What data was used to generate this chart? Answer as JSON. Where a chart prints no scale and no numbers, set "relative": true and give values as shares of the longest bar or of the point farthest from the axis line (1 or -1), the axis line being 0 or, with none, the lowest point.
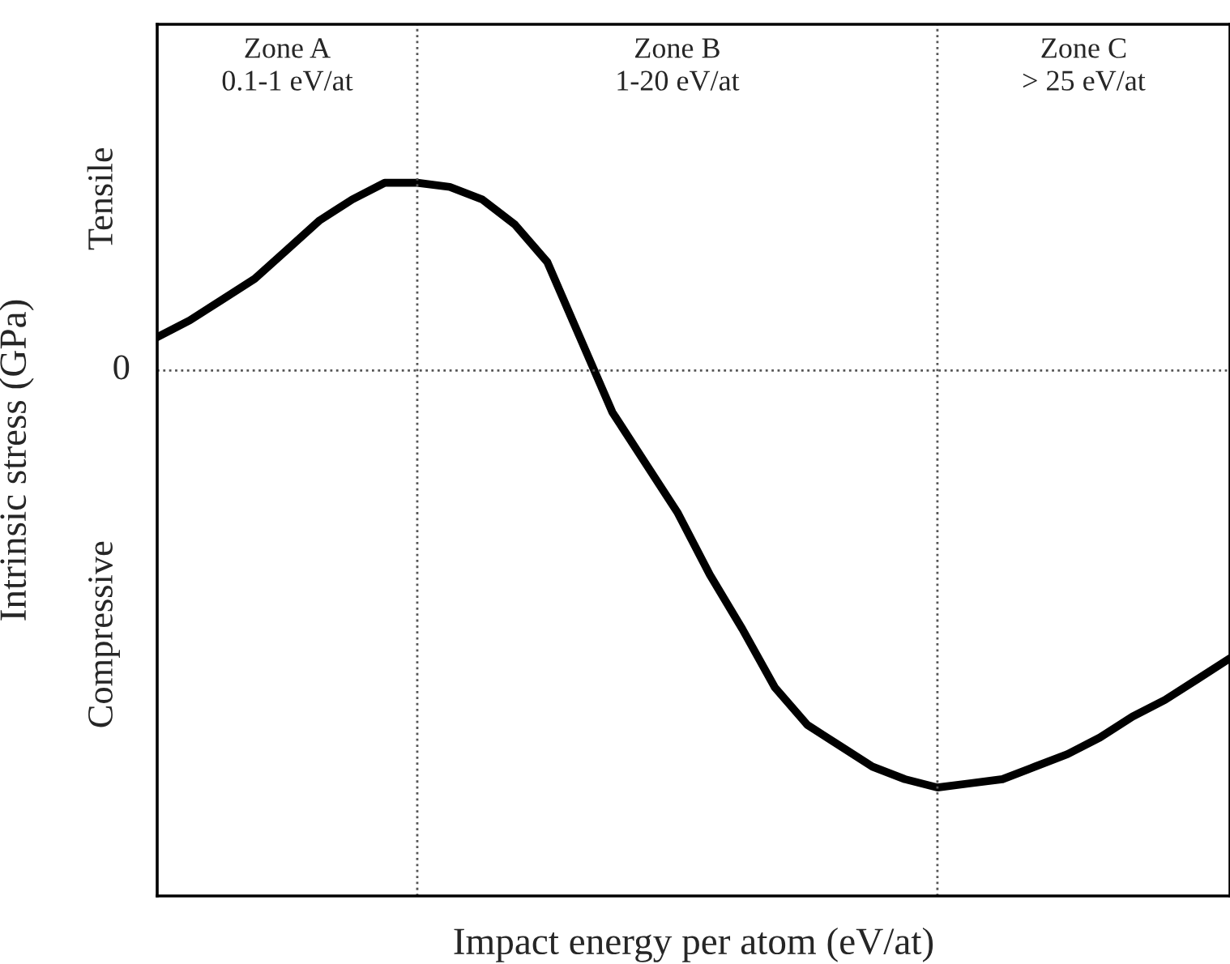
{
  "chart_data": {
    "type": "line",
    "relative": true,
    "xlabel": "Impact energy per atom (eV/at)",
    "ylabel": "Intrinsic stress (GPa)",
    "categories": [
      null,
      null,
      null,
      null,
      null,
      null,
      null,
      null,
      null,
      null,
      null,
      null,
      null,
      null,
      null,
      null,
      null,
      null,
      null,
      null,
      null,
      null,
      null,
      null,
      null,
      null,
      null,
      null,
      null,
      null,
      null,
      null,
      null,
      null
    ],
    "series": [
      {
        "color": "#000000",
        "values": [
          0.08,
          0.12,
          0.17,
          0.22,
          0.29,
          0.36,
          0.41,
          0.45,
          0.45,
          0.44,
          0.41,
          0.35,
          0.26,
          0.08,
          -0.1,
          -0.22,
          -0.34,
          -0.49,
          -0.62,
          -0.76,
          -0.85,
          -0.9,
          -0.95,
          -0.98,
          -1.0,
          -0.99,
          -0.98,
          -0.95,
          -0.92,
          -0.88,
          -0.83,
          -0.79,
          -0.74,
          -0.69
        ]
      }
    ],
    "ref_lines": [
      {
        "axis": "y",
        "value": 0,
        "label": "0",
        "line_style": "dotted"
      }
    ],
    "annotations": [
      "Zone A\n0.1-1 eV/at",
      "Zone B\n1-20 eV/at",
      "Zone C\n> 25 eV/at",
      "Tensile",
      "Compressive"
    ],
    "marker": "none",
    "line_style": "solid"
  }
}
